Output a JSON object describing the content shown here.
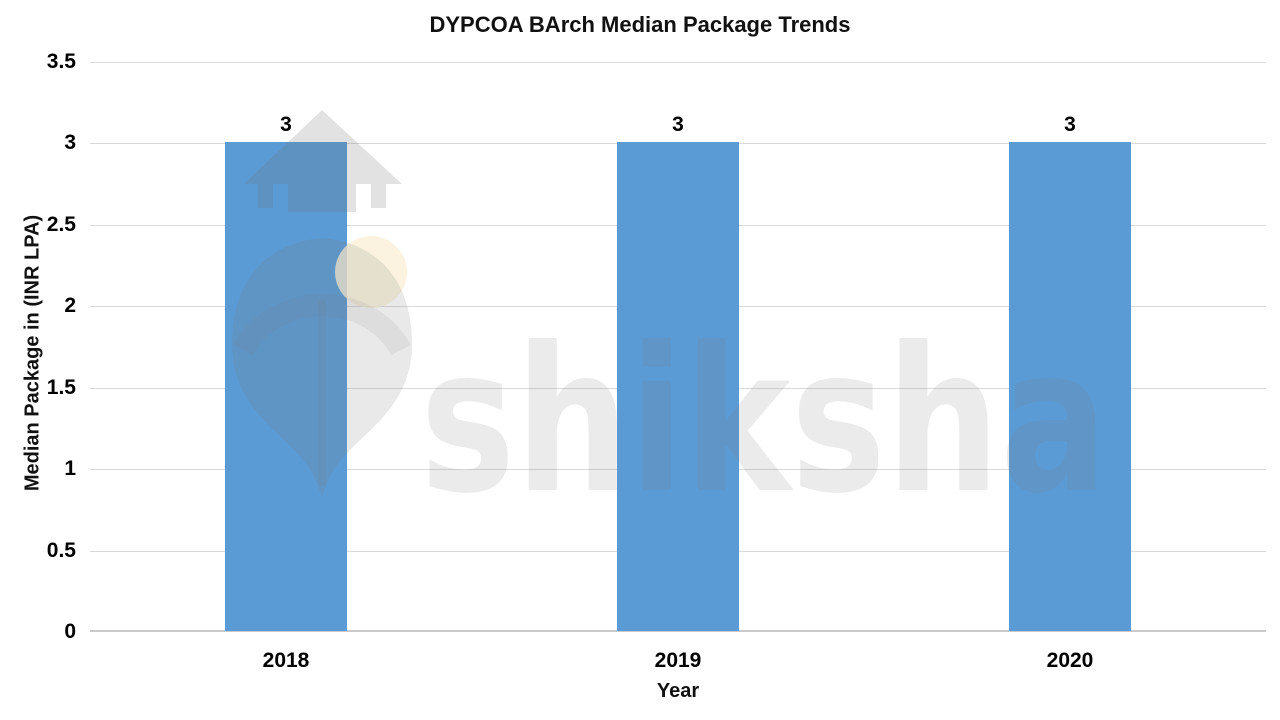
{
  "title": "DYPCOA BArch Median Package Trends",
  "watermark": {
    "text": "shiksha"
  },
  "chart_data": {
    "type": "bar",
    "title": "DYPCOA BArch Median Package Trends",
    "categories": [
      "2018",
      "2019",
      "2020"
    ],
    "values": [
      3,
      3,
      3
    ],
    "bar_value_labels": [
      "3",
      "3",
      "3"
    ],
    "xlabel": "Year",
    "ylabel": "Median Package in (INR LPA)",
    "ylim": [
      0,
      3.5
    ],
    "yticks": [
      0,
      0.5,
      1,
      1.5,
      2,
      2.5,
      3,
      3.5
    ],
    "ytick_labels": [
      "0",
      "0.5",
      "1",
      "1.5",
      "2",
      "2.5",
      "3",
      "3.5"
    ],
    "grid": "horizontal",
    "legend": "none",
    "bar_color": "#5B9BD5",
    "gridline_color": "#D9D9D9",
    "axis_line_color": "#C9C9C9",
    "label_color": "#000000"
  }
}
